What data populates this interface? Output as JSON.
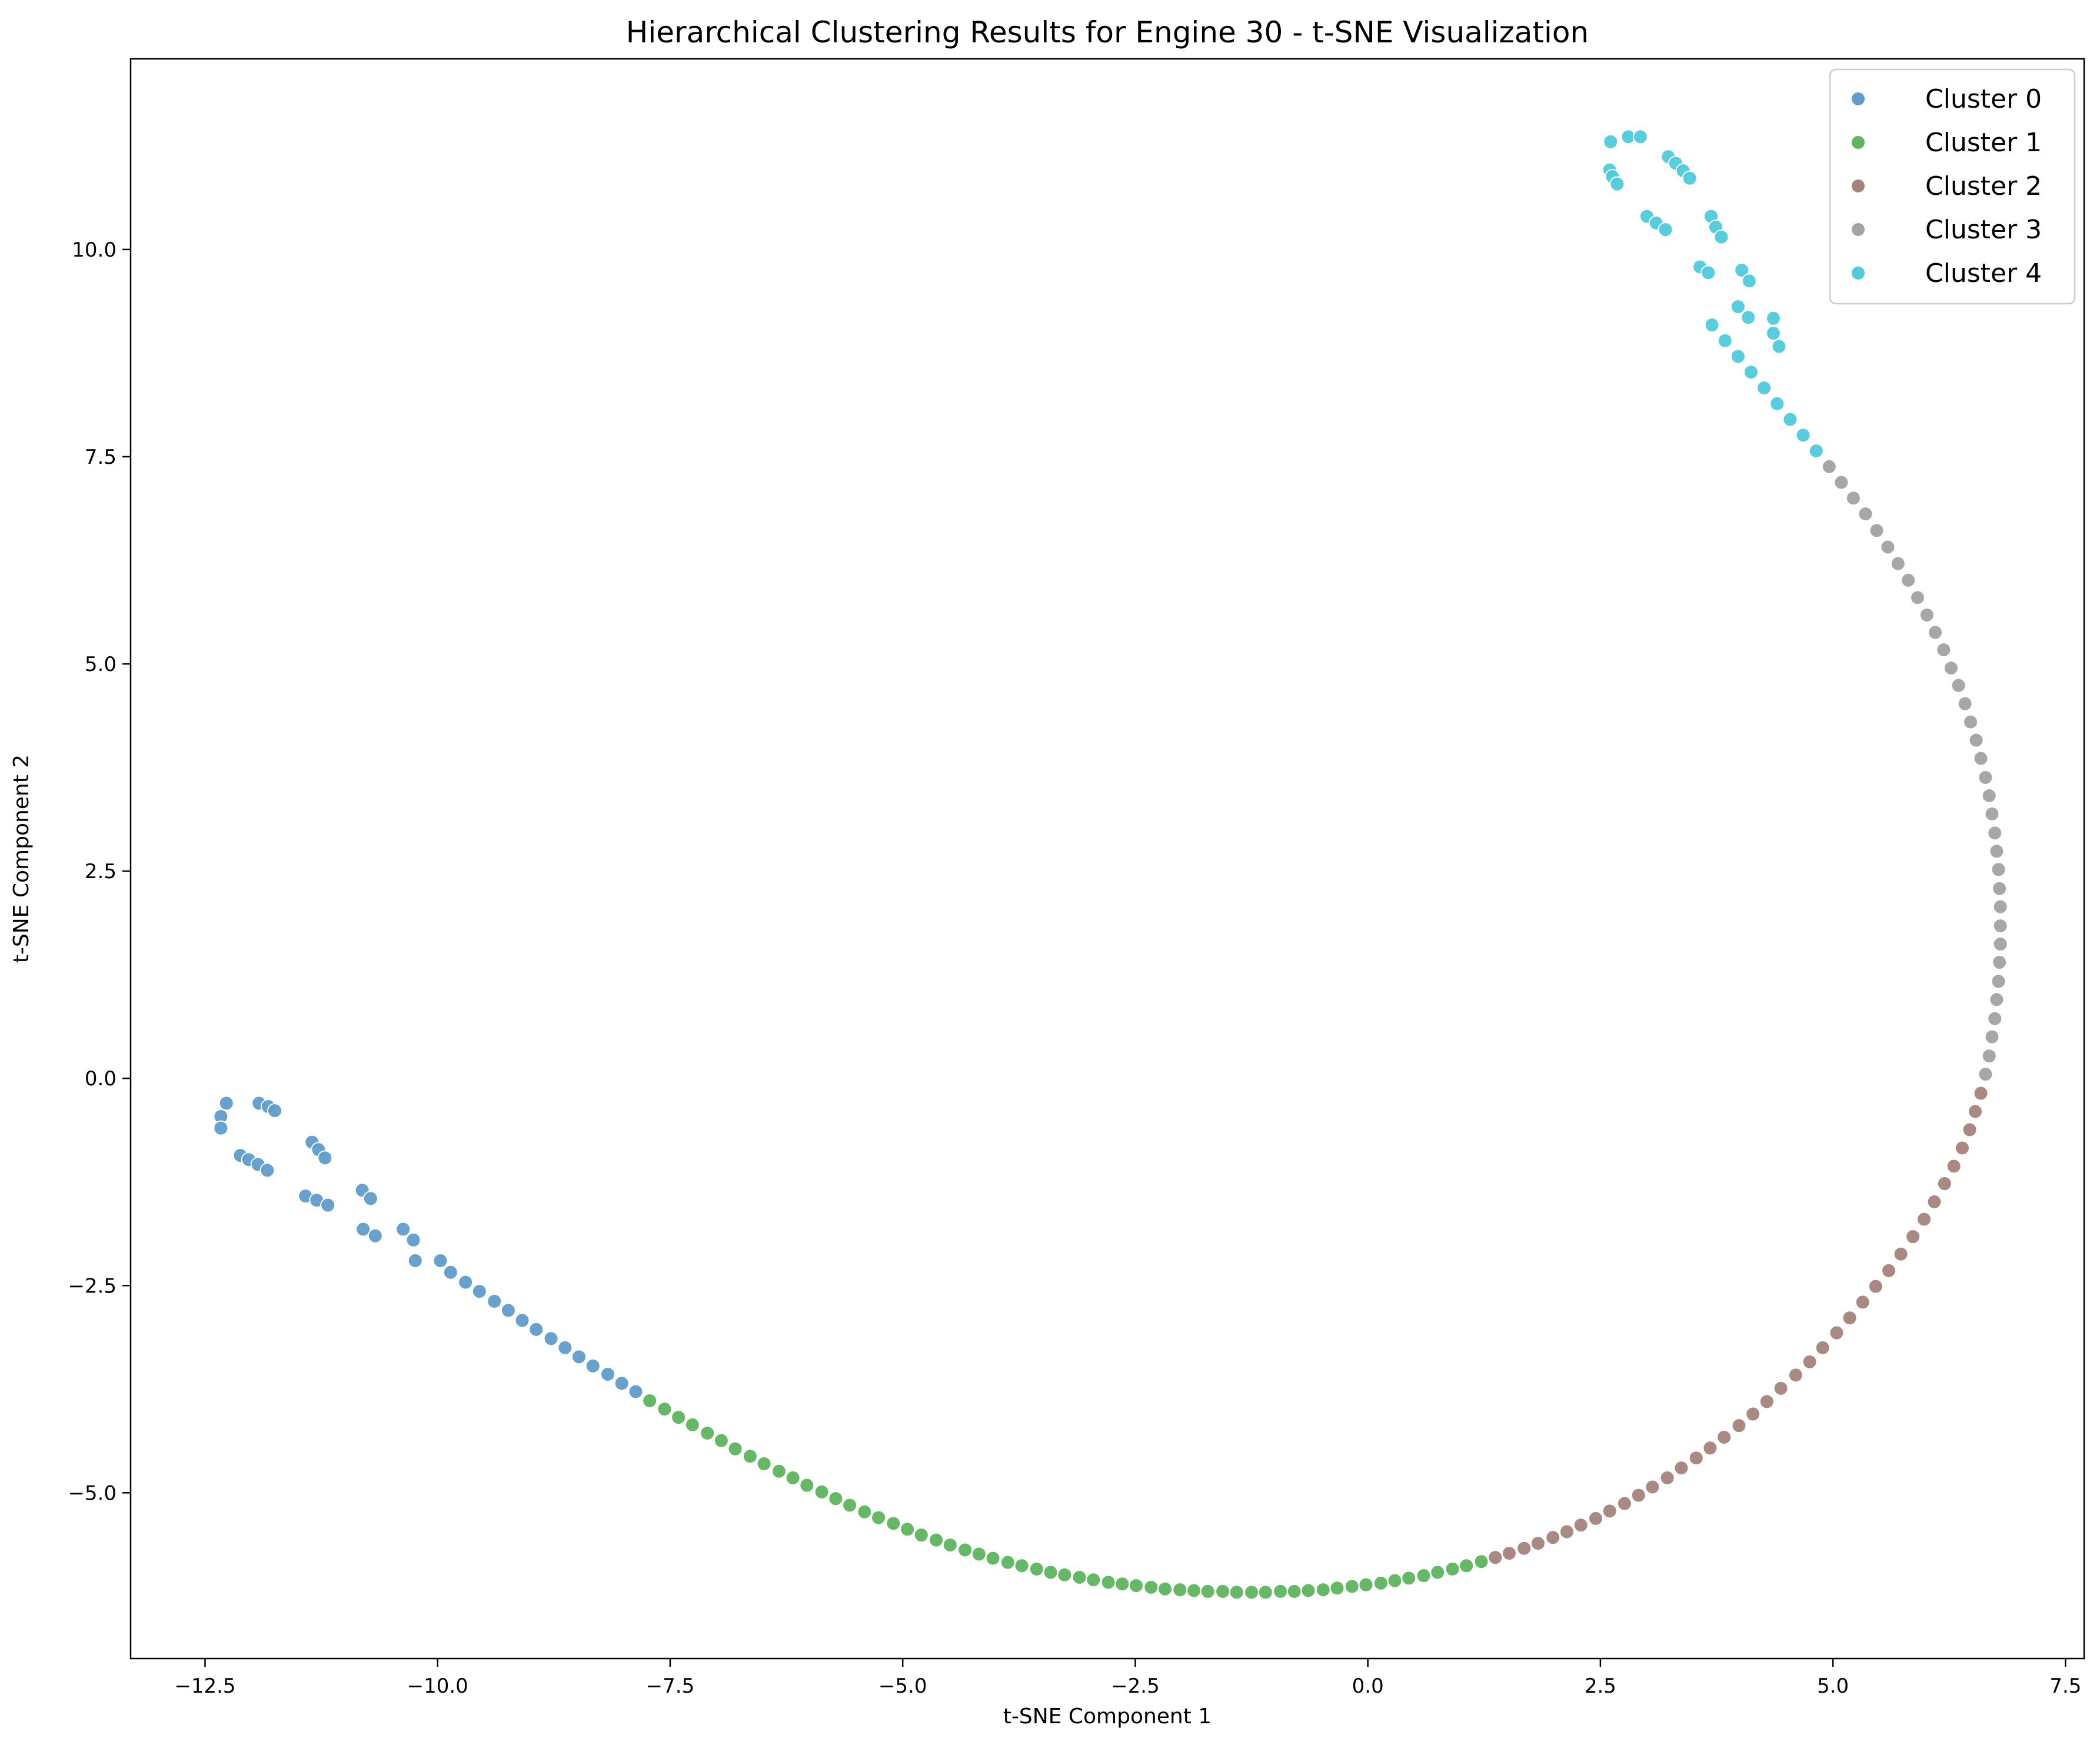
{
  "chart_data": {
    "type": "scatter",
    "title": "Hierarchical Clustering Results for Engine 30 - t-SNE Visualization",
    "xlabel": "t-SNE Component 1",
    "ylabel": "t-SNE Component 2",
    "xlim": [
      -13.3,
      7.7
    ],
    "ylim": [
      -7.0,
      12.3
    ],
    "xticks": [
      {
        "value": -12.5,
        "label": "−12.5"
      },
      {
        "value": -10.0,
        "label": "−10.0"
      },
      {
        "value": -7.5,
        "label": "−7.5"
      },
      {
        "value": -5.0,
        "label": "−5.0"
      },
      {
        "value": -2.5,
        "label": "−2.5"
      },
      {
        "value": 0.0,
        "label": "0.0"
      },
      {
        "value": 2.5,
        "label": "2.5"
      },
      {
        "value": 5.0,
        "label": "5.0"
      },
      {
        "value": 7.5,
        "label": "7.5"
      }
    ],
    "yticks": [
      {
        "value": -5.0,
        "label": "−5.0"
      },
      {
        "value": -2.5,
        "label": "−2.5"
      },
      {
        "value": 0.0,
        "label": "0.0"
      },
      {
        "value": 2.5,
        "label": "2.5"
      },
      {
        "value": 5.0,
        "label": "5.0"
      },
      {
        "value": 7.5,
        "label": "7.5"
      },
      {
        "value": 10.0,
        "label": "10.0"
      }
    ],
    "grid": false,
    "legend_position": "top-right",
    "series": [
      {
        "name": "Cluster 0",
        "color": "#5f9ccb",
        "points": [
          [
            -12.27,
            -0.3
          ],
          [
            -12.33,
            -0.46
          ],
          [
            -12.33,
            -0.6
          ],
          [
            -11.92,
            -0.3
          ],
          [
            -11.82,
            -0.34
          ],
          [
            -11.75,
            -0.39
          ],
          [
            -12.12,
            -0.93
          ],
          [
            -12.03,
            -0.98
          ],
          [
            -11.93,
            -1.04
          ],
          [
            -11.83,
            -1.11
          ],
          [
            -11.35,
            -0.77
          ],
          [
            -11.28,
            -0.86
          ],
          [
            -11.21,
            -0.96
          ],
          [
            -11.42,
            -1.42
          ],
          [
            -11.3,
            -1.47
          ],
          [
            -11.18,
            -1.53
          ],
          [
            -10.81,
            -1.35
          ],
          [
            -10.72,
            -1.45
          ],
          [
            -10.8,
            -1.82
          ],
          [
            -10.67,
            -1.9
          ],
          [
            -10.37,
            -1.82
          ],
          [
            -10.26,
            -1.95
          ],
          [
            -10.24,
            -2.2
          ],
          [
            -9.97,
            -2.2
          ],
          [
            -9.86,
            -2.34
          ],
          [
            -9.7,
            -2.46
          ],
          [
            -9.55,
            -2.57
          ],
          [
            -9.39,
            -2.69
          ],
          [
            -9.24,
            -2.8
          ],
          [
            -9.09,
            -2.92
          ],
          [
            -8.94,
            -3.03
          ],
          [
            -8.78,
            -3.14
          ],
          [
            -8.63,
            -3.25
          ],
          [
            -8.48,
            -3.36
          ],
          [
            -8.33,
            -3.47
          ],
          [
            -8.17,
            -3.57
          ],
          [
            -8.02,
            -3.68
          ],
          [
            -7.87,
            -3.78
          ]
        ]
      },
      {
        "name": "Cluster 1",
        "color": "#5db55d",
        "points": [
          [
            -7.72,
            -3.89
          ],
          [
            -7.56,
            -3.99
          ],
          [
            -7.41,
            -4.09
          ],
          [
            -7.26,
            -4.18
          ],
          [
            -7.1,
            -4.28
          ],
          [
            -6.95,
            -4.37
          ],
          [
            -6.8,
            -4.47
          ],
          [
            -6.64,
            -4.56
          ],
          [
            -6.49,
            -4.65
          ],
          [
            -6.33,
            -4.74
          ],
          [
            -6.18,
            -4.82
          ],
          [
            -6.03,
            -4.91
          ],
          [
            -5.87,
            -4.99
          ],
          [
            -5.72,
            -5.07
          ],
          [
            -5.57,
            -5.15
          ],
          [
            -5.41,
            -5.23
          ],
          [
            -5.26,
            -5.3
          ],
          [
            -5.1,
            -5.37
          ],
          [
            -4.95,
            -5.44
          ],
          [
            -4.8,
            -5.51
          ],
          [
            -4.64,
            -5.57
          ],
          [
            -4.49,
            -5.63
          ],
          [
            -4.33,
            -5.69
          ],
          [
            -4.18,
            -5.74
          ],
          [
            -4.03,
            -5.79
          ],
          [
            -3.87,
            -5.84
          ],
          [
            -3.72,
            -5.88
          ],
          [
            -3.56,
            -5.92
          ],
          [
            -3.41,
            -5.96
          ],
          [
            -3.26,
            -5.99
          ],
          [
            -3.1,
            -6.02
          ],
          [
            -2.95,
            -6.05
          ],
          [
            -2.79,
            -6.08
          ],
          [
            -2.64,
            -6.1
          ],
          [
            -2.49,
            -6.12
          ],
          [
            -2.33,
            -6.14
          ],
          [
            -2.18,
            -6.16
          ],
          [
            -2.02,
            -6.17
          ],
          [
            -1.87,
            -6.18
          ],
          [
            -1.72,
            -6.19
          ],
          [
            -1.56,
            -6.19
          ],
          [
            -1.41,
            -6.2
          ],
          [
            -1.25,
            -6.2
          ],
          [
            -1.1,
            -6.2
          ],
          [
            -0.94,
            -6.19
          ],
          [
            -0.79,
            -6.19
          ],
          [
            -0.64,
            -6.18
          ],
          [
            -0.48,
            -6.17
          ],
          [
            -0.33,
            -6.15
          ],
          [
            -0.17,
            -6.13
          ],
          [
            -0.02,
            -6.11
          ],
          [
            0.14,
            -6.09
          ],
          [
            0.29,
            -6.06
          ],
          [
            0.44,
            -6.03
          ],
          [
            0.6,
            -6.0
          ],
          [
            0.75,
            -5.96
          ],
          [
            0.91,
            -5.92
          ],
          [
            1.06,
            -5.88
          ],
          [
            1.22,
            -5.83
          ]
        ]
      },
      {
        "name": "Cluster 2",
        "color": "#a5837b",
        "points": [
          [
            1.37,
            -5.78
          ],
          [
            1.52,
            -5.73
          ],
          [
            1.68,
            -5.67
          ],
          [
            1.83,
            -5.61
          ],
          [
            1.99,
            -5.54
          ],
          [
            2.14,
            -5.47
          ],
          [
            2.29,
            -5.39
          ],
          [
            2.45,
            -5.31
          ],
          [
            2.6,
            -5.22
          ],
          [
            2.76,
            -5.13
          ],
          [
            2.91,
            -5.03
          ],
          [
            3.06,
            -4.93
          ],
          [
            3.22,
            -4.82
          ],
          [
            3.37,
            -4.7
          ],
          [
            3.53,
            -4.58
          ],
          [
            3.68,
            -4.46
          ],
          [
            3.83,
            -4.33
          ],
          [
            3.99,
            -4.19
          ],
          [
            4.14,
            -4.05
          ],
          [
            4.29,
            -3.9
          ],
          [
            4.44,
            -3.74
          ],
          [
            4.6,
            -3.58
          ],
          [
            4.75,
            -3.42
          ],
          [
            4.89,
            -3.25
          ],
          [
            5.04,
            -3.07
          ],
          [
            5.18,
            -2.89
          ],
          [
            5.32,
            -2.7
          ],
          [
            5.46,
            -2.51
          ],
          [
            5.6,
            -2.32
          ],
          [
            5.73,
            -2.12
          ],
          [
            5.86,
            -1.91
          ],
          [
            5.98,
            -1.7
          ],
          [
            6.09,
            -1.49
          ],
          [
            6.2,
            -1.27
          ],
          [
            6.3,
            -1.06
          ],
          [
            6.39,
            -0.84
          ],
          [
            6.47,
            -0.62
          ],
          [
            6.53,
            -0.4
          ],
          [
            6.59,
            -0.18
          ]
        ]
      },
      {
        "name": "Cluster 3",
        "color": "#a3a3a3",
        "points": [
          [
            6.64,
            0.05
          ],
          [
            6.68,
            0.27
          ],
          [
            6.71,
            0.5
          ],
          [
            6.74,
            0.72
          ],
          [
            6.76,
            0.95
          ],
          [
            6.78,
            1.17
          ],
          [
            6.79,
            1.4
          ],
          [
            6.8,
            1.62
          ],
          [
            6.8,
            1.84
          ],
          [
            6.8,
            2.07
          ],
          [
            6.79,
            2.29
          ],
          [
            6.78,
            2.52
          ],
          [
            6.76,
            2.74
          ],
          [
            6.74,
            2.96
          ],
          [
            6.71,
            3.19
          ],
          [
            6.68,
            3.41
          ],
          [
            6.64,
            3.63
          ],
          [
            6.59,
            3.86
          ],
          [
            6.54,
            4.08
          ],
          [
            6.48,
            4.3
          ],
          [
            6.42,
            4.52
          ],
          [
            6.35,
            4.74
          ],
          [
            6.27,
            4.95
          ],
          [
            6.19,
            5.17
          ],
          [
            6.1,
            5.38
          ],
          [
            6.01,
            5.59
          ],
          [
            5.91,
            5.8
          ],
          [
            5.81,
            6.01
          ],
          [
            5.7,
            6.21
          ],
          [
            5.59,
            6.41
          ],
          [
            5.47,
            6.61
          ],
          [
            5.35,
            6.81
          ],
          [
            5.22,
            7.0
          ],
          [
            5.09,
            7.19
          ],
          [
            4.96,
            7.38
          ]
        ]
      },
      {
        "name": "Cluster 4",
        "color": "#4fcbdc",
        "points": [
          [
            4.82,
            7.57
          ],
          [
            4.68,
            7.76
          ],
          [
            4.54,
            7.95
          ],
          [
            4.4,
            8.14
          ],
          [
            4.26,
            8.33
          ],
          [
            4.12,
            8.52
          ],
          [
            3.98,
            8.71
          ],
          [
            3.84,
            8.9
          ],
          [
            3.7,
            9.09
          ],
          [
            4.36,
            9.17
          ],
          [
            4.36,
            8.99
          ],
          [
            4.42,
            8.83
          ],
          [
            3.98,
            9.31
          ],
          [
            4.09,
            9.18
          ],
          [
            4.02,
            9.75
          ],
          [
            4.1,
            9.62
          ],
          [
            3.57,
            9.79
          ],
          [
            3.66,
            9.72
          ],
          [
            3.69,
            10.4
          ],
          [
            3.74,
            10.27
          ],
          [
            3.8,
            10.15
          ],
          [
            3.0,
            10.4
          ],
          [
            3.1,
            10.32
          ],
          [
            3.2,
            10.24
          ],
          [
            2.6,
            10.96
          ],
          [
            2.63,
            10.88
          ],
          [
            2.68,
            10.79
          ],
          [
            2.61,
            11.3
          ],
          [
            2.8,
            11.36
          ],
          [
            2.93,
            11.36
          ],
          [
            3.23,
            11.12
          ],
          [
            3.31,
            11.04
          ],
          [
            3.39,
            10.95
          ],
          [
            3.46,
            10.86
          ]
        ]
      }
    ]
  }
}
